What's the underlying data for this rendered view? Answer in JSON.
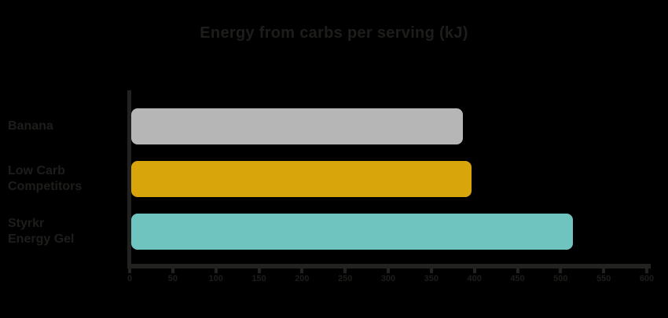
{
  "colors": {
    "background": "#000000",
    "text": "#1d1d1b",
    "axis": "#222220",
    "bar_gray": "#b6b6b6",
    "bar_gold": "#d8a50a",
    "bar_teal": "#70c4c0"
  },
  "chart_data": {
    "type": "bar",
    "orientation": "horizontal",
    "title": "Energy from carbs per serving (kJ)",
    "categories": [
      "Banana",
      "Low Carb\nCompetitors",
      "Styrkr\nEnergy Gel"
    ],
    "values": [
      385,
      395,
      512
    ],
    "bar_colors": [
      "#b6b6b6",
      "#d8a50a",
      "#70c4c0"
    ],
    "xlabel": "",
    "ylabel": "",
    "xlim": [
      0,
      600
    ],
    "x_ticks": [
      0,
      50,
      100,
      150,
      200,
      250,
      300,
      350,
      400,
      450,
      500,
      550,
      600
    ],
    "grid": false,
    "legend": false
  }
}
